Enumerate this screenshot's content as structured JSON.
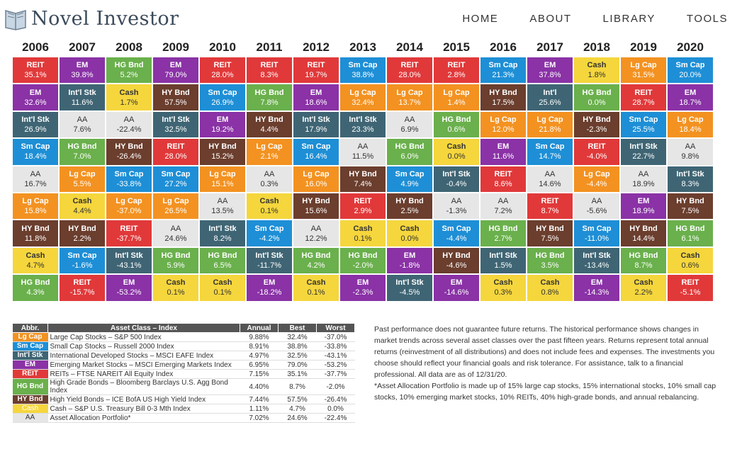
{
  "header": {
    "logo_text": "Novel Investor",
    "nav": [
      "HOME",
      "ABOUT",
      "LIBRARY",
      "TOOLS"
    ]
  },
  "colors": {
    "REIT": "#e1393a",
    "EM": "#8a32a6",
    "HG Bnd": "#6ab04c",
    "Sm Cap": "#1e8fd6",
    "Cash": "#f5d63d",
    "Lg Cap": "#f39221",
    "Int'l Stk": "#3f6574",
    "HY Bnd": "#6b3e2e",
    "AA": "#e6e6e6"
  },
  "years": [
    "2006",
    "2007",
    "2008",
    "2009",
    "2010",
    "2011",
    "2012",
    "2013",
    "2014",
    "2015",
    "2016",
    "2017",
    "2018",
    "2019",
    "2020"
  ],
  "columns": [
    [
      [
        "REIT",
        "35.1%"
      ],
      [
        "EM",
        "32.6%"
      ],
      [
        "Int'l Stk",
        "26.9%"
      ],
      [
        "Sm Cap",
        "18.4%"
      ],
      [
        "AA",
        "16.7%"
      ],
      [
        "Lg Cap",
        "15.8%"
      ],
      [
        "HY Bnd",
        "11.8%"
      ],
      [
        "Cash",
        "4.7%"
      ],
      [
        "HG Bnd",
        "4.3%"
      ]
    ],
    [
      [
        "EM",
        "39.8%"
      ],
      [
        "Int'l Stk",
        "11.6%"
      ],
      [
        "AA",
        "7.6%"
      ],
      [
        "HG Bnd",
        "7.0%"
      ],
      [
        "Lg Cap",
        "5.5%"
      ],
      [
        "Cash",
        "4.4%"
      ],
      [
        "HY Bnd",
        "2.2%"
      ],
      [
        "Sm Cap",
        "-1.6%"
      ],
      [
        "REIT",
        "-15.7%"
      ]
    ],
    [
      [
        "HG Bnd",
        "5.2%"
      ],
      [
        "Cash",
        "1.7%"
      ],
      [
        "AA",
        "-22.4%"
      ],
      [
        "HY Bnd",
        "-26.4%"
      ],
      [
        "Sm Cap",
        "-33.8%"
      ],
      [
        "Lg Cap",
        "-37.0%"
      ],
      [
        "REIT",
        "-37.7%"
      ],
      [
        "Int'l Stk",
        "-43.1%"
      ],
      [
        "EM",
        "-53.2%"
      ]
    ],
    [
      [
        "EM",
        "79.0%"
      ],
      [
        "HY Bnd",
        "57.5%"
      ],
      [
        "Int'l Stk",
        "32.5%"
      ],
      [
        "REIT",
        "28.0%"
      ],
      [
        "Sm Cap",
        "27.2%"
      ],
      [
        "Lg Cap",
        "26.5%"
      ],
      [
        "AA",
        "24.6%"
      ],
      [
        "HG Bnd",
        "5.9%"
      ],
      [
        "Cash",
        "0.1%"
      ]
    ],
    [
      [
        "REIT",
        "28.0%"
      ],
      [
        "Sm Cap",
        "26.9%"
      ],
      [
        "EM",
        "19.2%"
      ],
      [
        "HY Bnd",
        "15.2%"
      ],
      [
        "Lg Cap",
        "15.1%"
      ],
      [
        "AA",
        "13.5%"
      ],
      [
        "Int'l Stk",
        "8.2%"
      ],
      [
        "HG Bnd",
        "6.5%"
      ],
      [
        "Cash",
        "0.1%"
      ]
    ],
    [
      [
        "REIT",
        "8.3%"
      ],
      [
        "HG Bnd",
        "7.8%"
      ],
      [
        "HY Bnd",
        "4.4%"
      ],
      [
        "Lg Cap",
        "2.1%"
      ],
      [
        "AA",
        "0.3%"
      ],
      [
        "Cash",
        "0.1%"
      ],
      [
        "Sm Cap",
        "-4.2%"
      ],
      [
        "Int'l Stk",
        "-11.7%"
      ],
      [
        "EM",
        "-18.2%"
      ]
    ],
    [
      [
        "REIT",
        "19.7%"
      ],
      [
        "EM",
        "18.6%"
      ],
      [
        "Int'l Stk",
        "17.9%"
      ],
      [
        "Sm Cap",
        "16.4%"
      ],
      [
        "Lg Cap",
        "16.0%"
      ],
      [
        "HY Bnd",
        "15.6%"
      ],
      [
        "AA",
        "12.2%"
      ],
      [
        "HG Bnd",
        "4.2%"
      ],
      [
        "Cash",
        "0.1%"
      ]
    ],
    [
      [
        "Sm Cap",
        "38.8%"
      ],
      [
        "Lg Cap",
        "32.4%"
      ],
      [
        "Int'l Stk",
        "23.3%"
      ],
      [
        "AA",
        "11.5%"
      ],
      [
        "HY Bnd",
        "7.4%"
      ],
      [
        "REIT",
        "2.9%"
      ],
      [
        "Cash",
        "0.1%"
      ],
      [
        "HG Bnd",
        "-2.0%"
      ],
      [
        "EM",
        "-2.3%"
      ]
    ],
    [
      [
        "REIT",
        "28.0%"
      ],
      [
        "Lg Cap",
        "13.7%"
      ],
      [
        "AA",
        "6.9%"
      ],
      [
        "HG Bnd",
        "6.0%"
      ],
      [
        "Sm Cap",
        "4.9%"
      ],
      [
        "HY Bnd",
        "2.5%"
      ],
      [
        "Cash",
        "0.0%"
      ],
      [
        "EM",
        "-1.8%"
      ],
      [
        "Int'l Stk",
        "-4.5%"
      ]
    ],
    [
      [
        "REIT",
        "2.8%"
      ],
      [
        "Lg Cap",
        "1.4%"
      ],
      [
        "HG Bnd",
        "0.6%"
      ],
      [
        "Cash",
        "0.0%"
      ],
      [
        "Int'l Stk",
        "-0.4%"
      ],
      [
        "AA",
        "-1.3%"
      ],
      [
        "Sm Cap",
        "-4.4%"
      ],
      [
        "HY Bnd",
        "-4.6%"
      ],
      [
        "EM",
        "-14.6%"
      ]
    ],
    [
      [
        "Sm Cap",
        "21.3%"
      ],
      [
        "HY Bnd",
        "17.5%"
      ],
      [
        "Lg Cap",
        "12.0%"
      ],
      [
        "EM",
        "11.6%"
      ],
      [
        "REIT",
        "8.6%"
      ],
      [
        "AA",
        "7.2%"
      ],
      [
        "HG Bnd",
        "2.7%"
      ],
      [
        "Int'l Stk",
        "1.5%"
      ],
      [
        "Cash",
        "0.3%"
      ]
    ],
    [
      [
        "EM",
        "37.8%"
      ],
      [
        "Int'l",
        "25.6%"
      ],
      [
        "Lg Cap",
        "21.8%"
      ],
      [
        "Sm Cap",
        "14.7%"
      ],
      [
        "AA",
        "14.6%"
      ],
      [
        "REIT",
        "8.7%"
      ],
      [
        "HY Bnd",
        "7.5%"
      ],
      [
        "HG Bnd",
        "3.5%"
      ],
      [
        "Cash",
        "0.8%"
      ]
    ],
    [
      [
        "Cash",
        "1.8%"
      ],
      [
        "HG Bnd",
        "0.0%"
      ],
      [
        "HY Bnd",
        "-2.3%"
      ],
      [
        "REIT",
        "-4.0%"
      ],
      [
        "Lg Cap",
        "-4.4%"
      ],
      [
        "AA",
        "-5.6%"
      ],
      [
        "Sm Cap",
        "-11.0%"
      ],
      [
        "Int'l Stk",
        "-13.4%"
      ],
      [
        "EM",
        "-14.3%"
      ]
    ],
    [
      [
        "Lg Cap",
        "31.5%"
      ],
      [
        "REIT",
        "28.7%"
      ],
      [
        "Sm Cap",
        "25.5%"
      ],
      [
        "Int'l Stk",
        "22.7%"
      ],
      [
        "AA",
        "18.9%"
      ],
      [
        "EM",
        "18.9%"
      ],
      [
        "HY Bnd",
        "14.4%"
      ],
      [
        "HG Bnd",
        "8.7%"
      ],
      [
        "Cash",
        "2.2%"
      ]
    ],
    [
      [
        "Sm Cap",
        "20.0%"
      ],
      [
        "EM",
        "18.7%"
      ],
      [
        "Lg Cap",
        "18.4%"
      ],
      [
        "AA",
        "9.8%"
      ],
      [
        "Int'l Stk",
        "8.3%"
      ],
      [
        "HY Bnd",
        "7.5%"
      ],
      [
        "HG Bnd",
        "6.1%"
      ],
      [
        "Cash",
        "0.6%"
      ],
      [
        "REIT",
        "-5.1%"
      ]
    ]
  ],
  "legend": {
    "headers": [
      "Abbr.",
      "Asset Class – Index",
      "Annual",
      "Best",
      "Worst"
    ],
    "rows": [
      {
        "abbr": "Lg Cap",
        "key": "Lg Cap",
        "name": "Large Cap Stocks – S&P 500 Index",
        "annual": "9.88%",
        "best": "32.4%",
        "worst": "-37.0%"
      },
      {
        "abbr": "Sm Cap",
        "key": "Sm Cap",
        "name": "Small Cap Stocks – Russell 2000 Index",
        "annual": "8.91%",
        "best": "38.8%",
        "worst": "-33.8%"
      },
      {
        "abbr": "Int'l Stk",
        "key": "Int'l Stk",
        "name": "International Developed Stocks – MSCI EAFE Index",
        "annual": "4.97%",
        "best": "32.5%",
        "worst": "-43.1%"
      },
      {
        "abbr": "EM",
        "key": "EM",
        "name": "Emerging Market Stocks – MSCI Emerging Markets Index",
        "annual": "6.95%",
        "best": "79.0%",
        "worst": "-53.2%"
      },
      {
        "abbr": "REIT",
        "key": "REIT",
        "name": "REITs – FTSE NAREIT All Equity Index",
        "annual": "7.15%",
        "best": "35.1%",
        "worst": "-37.7%"
      },
      {
        "abbr": "HG Bnd",
        "key": "HG Bnd",
        "name": "High Grade Bonds – Bloomberg Barclays U.S. Agg Bond Index",
        "annual": "4.40%",
        "best": "8.7%",
        "worst": "-2.0%"
      },
      {
        "abbr": "HY Bnd",
        "key": "HY Bnd",
        "name": "High Yield Bonds – ICE BofA US High Yield Index",
        "annual": "7.44%",
        "best": "57.5%",
        "worst": "-26.4%"
      },
      {
        "abbr": "Cash",
        "key": "Cash",
        "name": "Cash – S&P U.S. Treasury Bill 0-3 Mth Index",
        "annual": "1.11%",
        "best": "4.7%",
        "worst": "0.0%"
      },
      {
        "abbr": "AA",
        "key": "AA",
        "name": "Asset Allocation Portfolio*",
        "annual": "7.02%",
        "best": "24.6%",
        "worst": "-22.4%"
      }
    ]
  },
  "notes": {
    "p1": "Past performance does not guarantee future returns. The historical performance shows changes in market trends across several asset classes over the past fifteen years. Returns represent total annual returns (reinvestment of all distributions) and does not include fees and expenses. The investments you choose should reflect your financial goals and risk tolerance. For assistance, talk to a financial professional. All data are as of 12/31/20.",
    "p2": "*Asset Allocation Portfolio is made up of 15% large cap stocks, 15% international stocks, 10% small cap stocks, 10% emerging market stocks, 10% REITs, 40% high-grade bonds, and annual rebalancing."
  }
}
